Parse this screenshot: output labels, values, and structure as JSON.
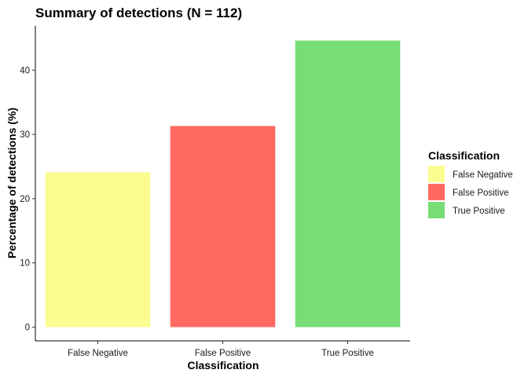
{
  "chart_data": {
    "type": "bar",
    "title": "Summary of detections (N = 112)",
    "xlabel": "Classification",
    "ylabel": "Percentage of detections (%)",
    "categories": [
      "False Negative",
      "False Positive",
      "True Positive"
    ],
    "values": [
      24.1,
      31.3,
      44.6
    ],
    "colors": [
      "#FAFC8F",
      "#FF6961",
      "#77DD77"
    ],
    "ylim": [
      0,
      46.7
    ],
    "yticks": [
      0,
      10,
      20,
      30,
      40
    ],
    "grid": false,
    "legend": {
      "title": "Classification",
      "position": "right",
      "entries": [
        "False Negative",
        "False Positive",
        "True Positive"
      ]
    }
  }
}
